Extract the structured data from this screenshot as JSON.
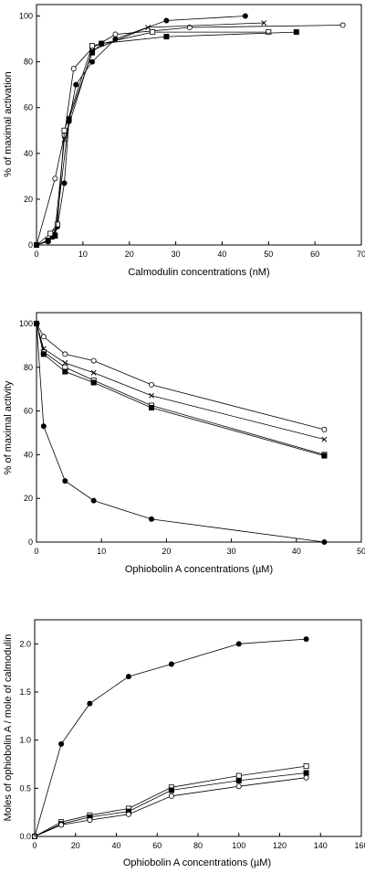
{
  "chart_data": [
    {
      "type": "line",
      "xlabel": "Calmodulin concentrations (nM)",
      "ylabel": "% of maximal activation",
      "xlim": [
        0,
        70
      ],
      "ylim": [
        0,
        105
      ],
      "xticks": [
        "0",
        "10",
        "20",
        "30",
        "40",
        "50",
        "60",
        "70"
      ],
      "yticks": [
        "0",
        "20",
        "40",
        "60",
        "80",
        "100"
      ],
      "series": [
        {
          "marker": "filled-circle",
          "x": [
            0,
            2.5,
            3.5,
            4.5,
            6,
            7,
            8.5,
            12,
            17,
            28,
            45
          ],
          "y": [
            0,
            1.5,
            3.5,
            8,
            27,
            54,
            70,
            80,
            90,
            98,
            100
          ]
        },
        {
          "marker": "open-circle",
          "x": [
            0,
            4,
            6,
            8,
            12,
            17,
            33,
            66
          ],
          "y": [
            0,
            29,
            48,
            77,
            86,
            92,
            95,
            96
          ]
        },
        {
          "marker": "cross",
          "x": [
            0,
            2.5,
            4,
            6,
            12,
            24,
            49
          ],
          "y": [
            0,
            2,
            6,
            46,
            85,
            95,
            97
          ]
        },
        {
          "marker": "open-square",
          "x": [
            0,
            3,
            4.5,
            6,
            12,
            25,
            50
          ],
          "y": [
            0,
            5,
            9,
            50,
            87,
            93,
            93
          ]
        },
        {
          "marker": "filled-square",
          "x": [
            0,
            2.5,
            4,
            7,
            12,
            14,
            28,
            56
          ],
          "y": [
            0,
            2,
            4,
            55,
            84,
            88,
            91,
            93
          ]
        }
      ]
    },
    {
      "type": "line",
      "xlabel": "Ophiobolin A concentrations (µM)",
      "ylabel": "% of maximal activity",
      "xlim": [
        0,
        50
      ],
      "ylim": [
        0,
        105
      ],
      "xticks": [
        "0",
        "10",
        "20",
        "30",
        "40",
        "50"
      ],
      "yticks": [
        "0",
        "20",
        "40",
        "60",
        "80",
        "100"
      ],
      "series": [
        {
          "marker": "filled-circle",
          "x": [
            0,
            1.1,
            4.4,
            8.8,
            17.7,
            44.3
          ],
          "y": [
            100,
            53,
            28,
            19,
            10.5,
            0
          ]
        },
        {
          "marker": "open-circle",
          "x": [
            0,
            1.1,
            4.4,
            8.8,
            17.7,
            44.3
          ],
          "y": [
            100,
            94,
            86,
            83,
            72,
            51.5
          ]
        },
        {
          "marker": "cross",
          "x": [
            0,
            1.1,
            4.4,
            8.8,
            17.7,
            44.3
          ],
          "y": [
            100,
            88.5,
            82,
            77.5,
            67,
            47
          ]
        },
        {
          "marker": "open-square",
          "x": [
            0,
            1.1,
            4.4,
            8.8,
            17.7,
            44.3
          ],
          "y": [
            100,
            87,
            80,
            74,
            62.5,
            40
          ]
        },
        {
          "marker": "filled-square",
          "x": [
            0,
            1.1,
            4.4,
            8.8,
            17.7,
            44.3
          ],
          "y": [
            100,
            86,
            78,
            73,
            61.5,
            39.5
          ]
        }
      ]
    },
    {
      "type": "line",
      "xlabel": "Ophiobolin A concentrations (µM)",
      "ylabel": "Moles of ophiobolin A / mole of calmodulin",
      "xlim": [
        0,
        160
      ],
      "ylim": [
        0,
        2.25
      ],
      "xticks": [
        "0",
        "20",
        "40",
        "60",
        "80",
        "100",
        "120",
        "140",
        "160"
      ],
      "yticks": [
        "0.0",
        "0.5",
        "1.0",
        "1.5",
        "2.0"
      ],
      "series": [
        {
          "marker": "filled-circle",
          "x": [
            0,
            13,
            27,
            46,
            67,
            100,
            133
          ],
          "y": [
            0,
            0.96,
            1.38,
            1.66,
            1.79,
            2.0,
            2.05
          ]
        },
        {
          "marker": "open-square",
          "x": [
            0,
            13,
            27,
            46,
            67,
            100,
            133
          ],
          "y": [
            0,
            0.15,
            0.22,
            0.29,
            0.51,
            0.63,
            0.73
          ]
        },
        {
          "marker": "filled-square",
          "x": [
            0,
            13,
            27,
            46,
            67,
            100,
            133
          ],
          "y": [
            0,
            0.13,
            0.2,
            0.26,
            0.48,
            0.58,
            0.66
          ]
        },
        {
          "marker": "open-circle",
          "x": [
            0,
            13,
            27,
            46,
            67,
            100,
            133
          ],
          "y": [
            0,
            0.12,
            0.17,
            0.23,
            0.42,
            0.52,
            0.61
          ]
        }
      ]
    }
  ]
}
